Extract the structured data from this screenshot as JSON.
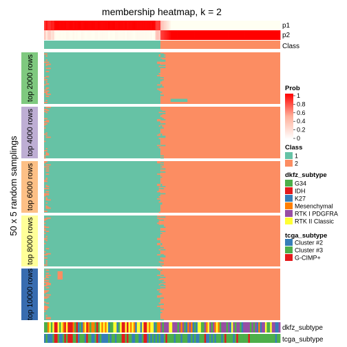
{
  "chart_data": {
    "type": "heatmap",
    "title": "membership heatmap, k = 2",
    "ylabel": "50 x 5 random samplings",
    "top_annotations": [
      "p1",
      "p2",
      "Class"
    ],
    "bottom_annotations": [
      "dkfz_subtype",
      "tcga_subtype"
    ],
    "row_groups": [
      {
        "label": "top 2000 rows",
        "color": "#7fc97f"
      },
      {
        "label": "top 4000 rows",
        "color": "#beaed4"
      },
      {
        "label": "top 6000 rows",
        "color": "#fdc086"
      },
      {
        "label": "top 8000 rows",
        "color": "#ffff99"
      },
      {
        "label": "top 10000 rows",
        "color": "#386cb0"
      }
    ],
    "n_samples": 140,
    "class1_samples": 69,
    "class_colors": {
      "1": "#66c2a5",
      "2": "#fc8d62"
    },
    "legends": {
      "prob": {
        "title": "Prob",
        "ticks": [
          "1",
          "0.8",
          "0.6",
          "0.4",
          "0.2",
          "0"
        ],
        "low_color": "#ffffff",
        "high_color": "#ff0000"
      },
      "class": {
        "title": "Class",
        "items": [
          {
            "label": "1",
            "color": "#66c2a5"
          },
          {
            "label": "2",
            "color": "#fc8d62"
          }
        ]
      },
      "dkfz_subtype": {
        "title": "dkfz_subtype",
        "items": [
          {
            "label": "G34",
            "color": "#4daf4a"
          },
          {
            "label": "IDH",
            "color": "#e41a1c"
          },
          {
            "label": "K27",
            "color": "#377eb8"
          },
          {
            "label": "Mesenchymal",
            "color": "#ff7f00"
          },
          {
            "label": "RTK I PDGFRA",
            "color": "#984ea3"
          },
          {
            "label": "RTK II Classic",
            "color": "#ffff33"
          }
        ]
      },
      "tcga_subtype": {
        "title": "tcga_subtype",
        "items": [
          {
            "label": "Cluster #2",
            "color": "#377eb8"
          },
          {
            "label": "Cluster #3",
            "color": "#4daf4a"
          },
          {
            "label": "G-CIMP+",
            "color": "#e41a1c"
          }
        ]
      }
    }
  }
}
